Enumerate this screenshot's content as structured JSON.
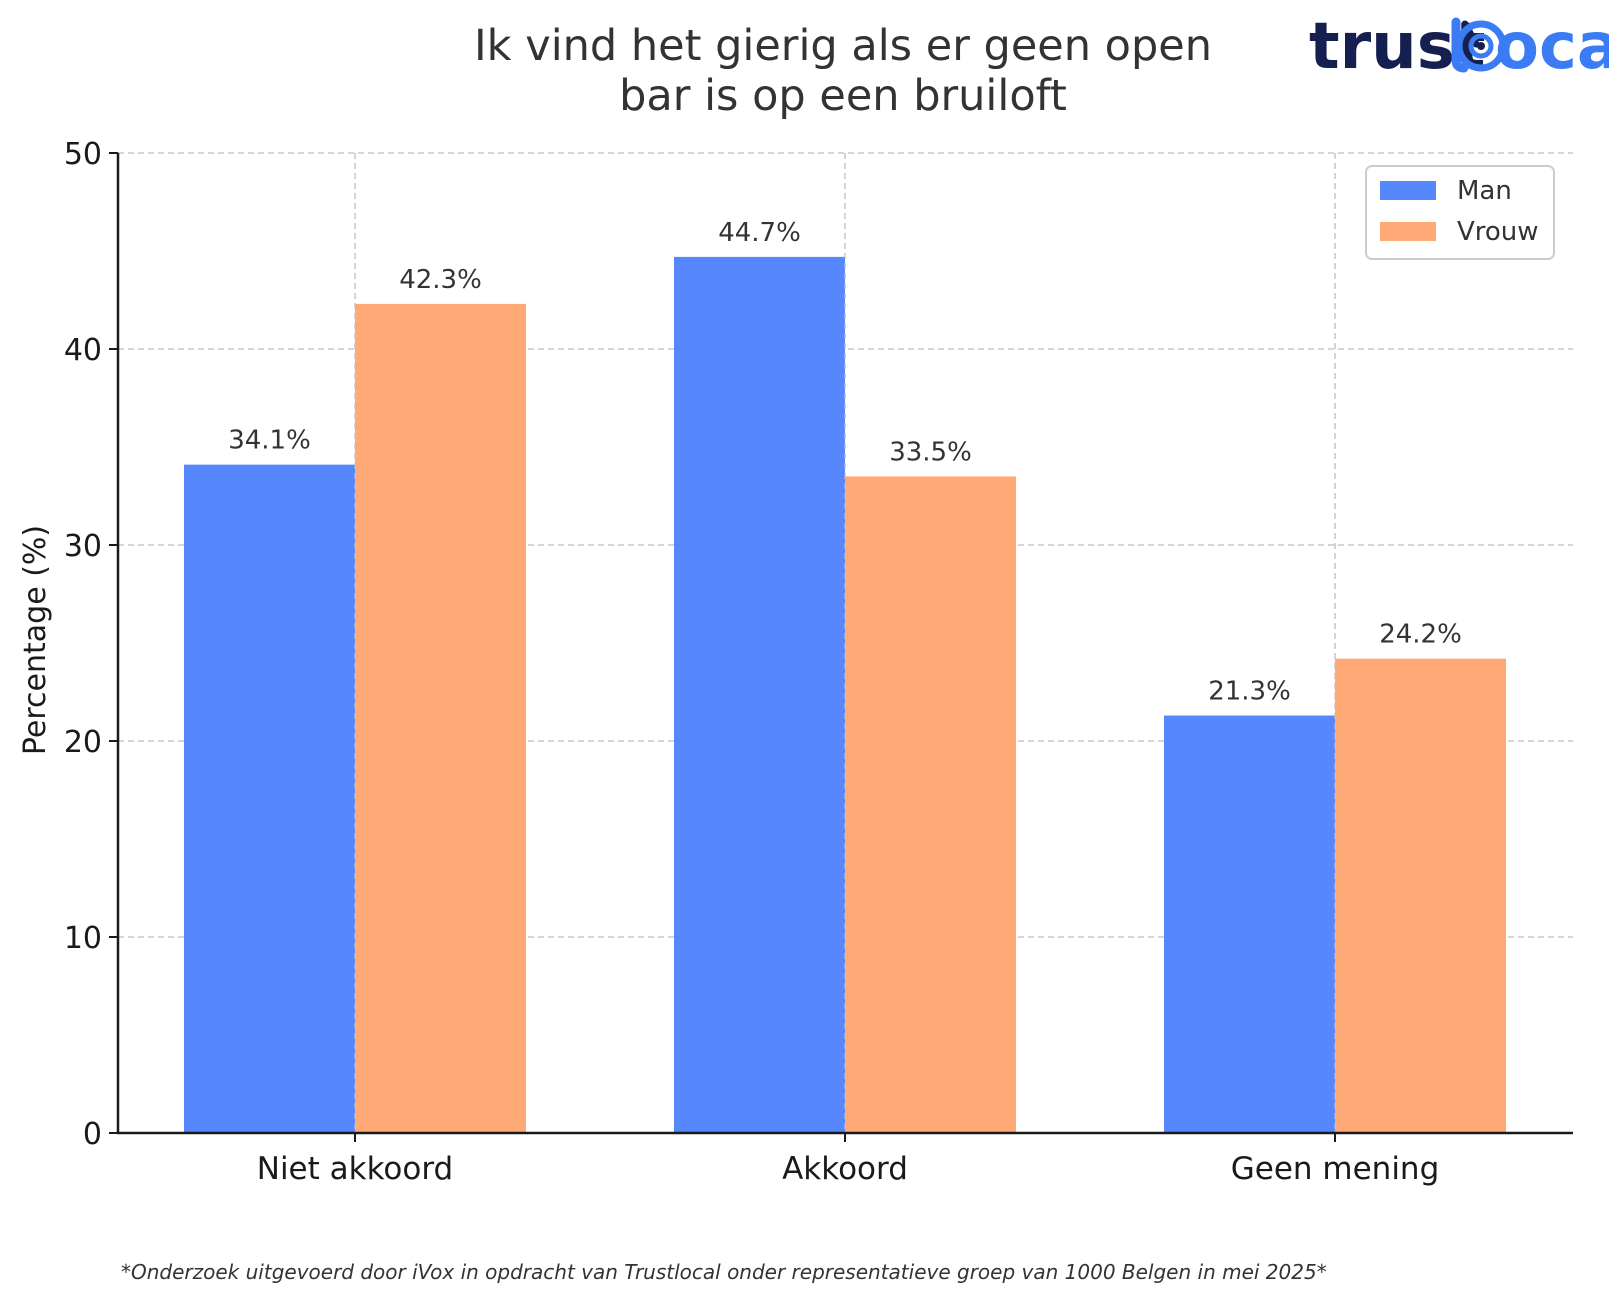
{
  "chart_data": {
    "type": "bar",
    "title_lines": [
      "Ik vind het gierig als er geen open",
      "bar is op een bruiloft"
    ],
    "ylabel": "Percentage (%)",
    "xlabel": "",
    "categories": [
      "Niet akkoord",
      "Akkoord",
      "Geen mening"
    ],
    "series": [
      {
        "name": "Man",
        "values": [
          34.1,
          44.7,
          21.3
        ],
        "labels": [
          "34.1%",
          "44.7%",
          "21.3%"
        ],
        "color": "#5787fd"
      },
      {
        "name": "Vrouw",
        "values": [
          42.3,
          33.5,
          24.2
        ],
        "labels": [
          "42.3%",
          "33.5%",
          "24.2%"
        ],
        "color": "#fea976"
      }
    ],
    "ylim": [
      0,
      50
    ],
    "yticks": [
      0,
      10,
      20,
      30,
      40,
      50
    ],
    "ytick_labels": [
      "0",
      "10",
      "20",
      "30",
      "40",
      "50"
    ],
    "grid": true,
    "legend_position": "top-right"
  },
  "logo": {
    "part1": "trust",
    "part2": "ocal",
    "dark_color": "#152050",
    "blue_color": "#3b7cf5"
  },
  "footnote": "*Onderzoek uitgevoerd door iVox in opdracht van Trustlocal onder representatieve groep van 1000 Belgen in mei 2025*"
}
